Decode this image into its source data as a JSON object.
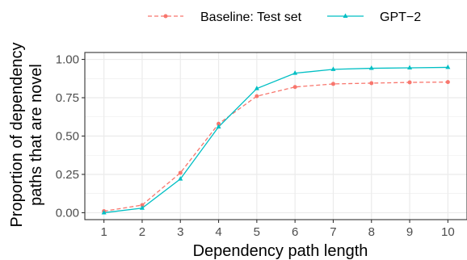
{
  "chart_data": {
    "type": "line",
    "x": [
      1,
      2,
      3,
      4,
      5,
      6,
      7,
      8,
      9,
      10
    ],
    "series": [
      {
        "name": "Baseline: Test set",
        "values": [
          0.01,
          0.05,
          0.26,
          0.58,
          0.76,
          0.82,
          0.84,
          0.845,
          0.85,
          0.852
        ],
        "color": "#F8766D",
        "line_style": "dashed",
        "marker": "circle"
      },
      {
        "name": "GPT−2",
        "values": [
          0.0,
          0.03,
          0.22,
          0.56,
          0.81,
          0.91,
          0.935,
          0.942,
          0.945,
          0.948
        ],
        "color": "#00BFC4",
        "line_style": "solid",
        "marker": "triangle"
      }
    ],
    "xlabel": "Dependency path length",
    "ylabel_lines": [
      "Proportion of dependency",
      "paths that are novel"
    ],
    "xlim": [
      0.5,
      10.5
    ],
    "ylim": [
      -0.045,
      1.045
    ],
    "x_ticks": [
      "1",
      "2",
      "3",
      "4",
      "5",
      "6",
      "7",
      "8",
      "9",
      "10"
    ],
    "y_ticks": [
      "0.00",
      "0.25",
      "0.50",
      "0.75",
      "1.00"
    ],
    "y_tick_values": [
      0,
      0.25,
      0.5,
      0.75,
      1.0
    ],
    "grid": true,
    "legend_position": "top"
  }
}
